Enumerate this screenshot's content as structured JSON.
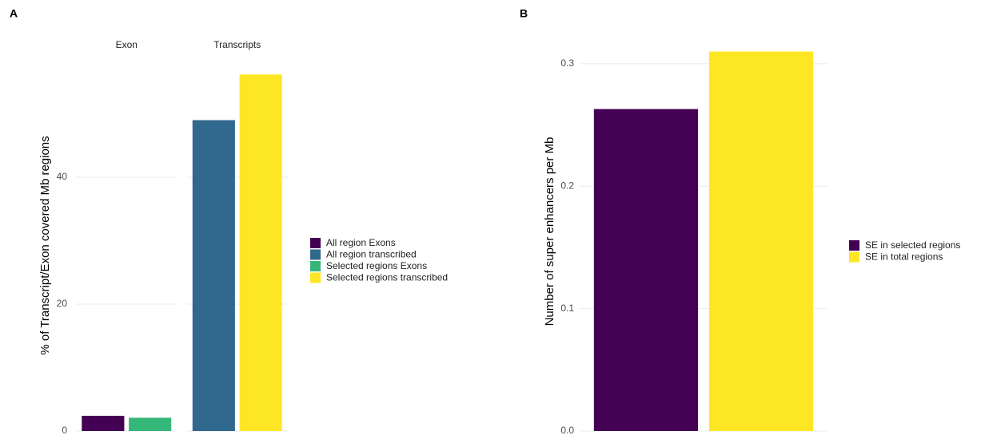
{
  "chart_data": [
    {
      "type": "bar",
      "panel": "A",
      "ylabel": "% of Transcript/Exon covered Mb regions",
      "categories": [
        "Exon",
        "Transcripts"
      ],
      "series": [
        {
          "name": "All region Exons",
          "color": "#440154",
          "values": [
            2.4,
            null
          ]
        },
        {
          "name": "All region transcribed",
          "color": "#31688e",
          "values": [
            null,
            49
          ]
        },
        {
          "name": "Selected regions Exons",
          "color": "#35b779",
          "values": [
            2.1,
            null
          ]
        },
        {
          "name": "Selected regions transcribed",
          "color": "#fde725",
          "values": [
            null,
            56.2
          ]
        }
      ],
      "ylim": [
        0,
        58.5
      ],
      "yticks": [
        0,
        20,
        40
      ],
      "grid": true
    },
    {
      "type": "bar",
      "panel": "B",
      "ylabel": "Number of super enhancers per Mb",
      "categories": [
        null
      ],
      "series": [
        {
          "name": "SE in selected regions",
          "color": "#440154",
          "values": [
            0.263
          ]
        },
        {
          "name": "SE in total regions",
          "color": "#fde725",
          "values": [
            0.31
          ]
        }
      ],
      "ylim": [
        0,
        0.326
      ],
      "yticks": [
        {
          "value": 0,
          "label": "0.0"
        },
        0.1,
        0.2,
        0.3
      ],
      "grid": true
    }
  ]
}
